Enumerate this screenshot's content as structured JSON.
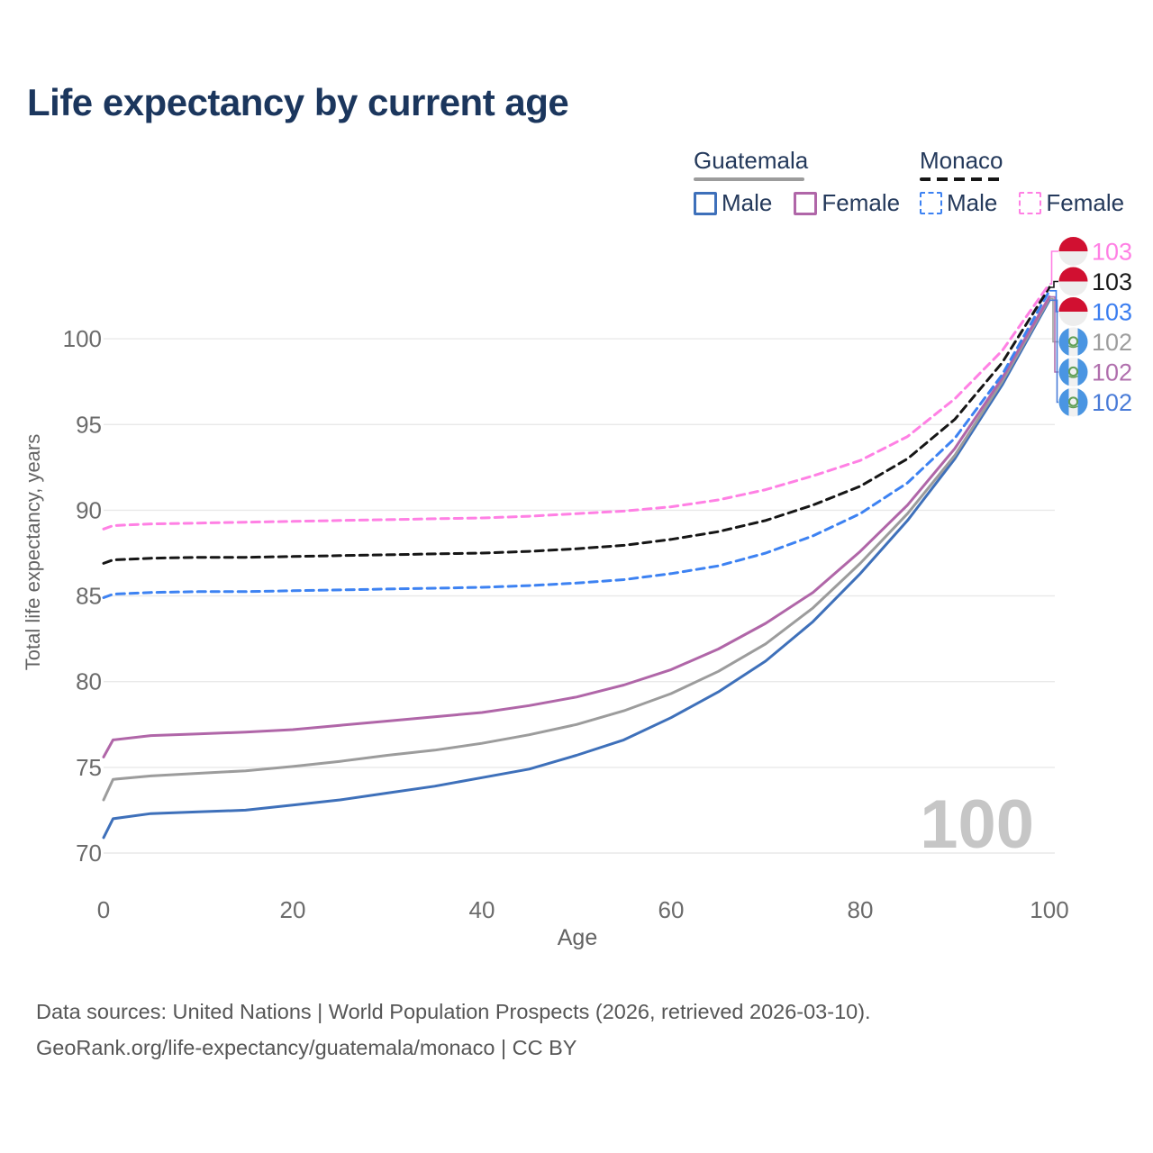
{
  "title": "Life expectancy by current age",
  "legend": {
    "guatemala": {
      "label": "Guatemala",
      "male": "Male",
      "female": "Female"
    },
    "monaco": {
      "label": "Monaco",
      "male": "Male",
      "female": "Female"
    }
  },
  "watermark": "100",
  "footer": {
    "line1": "Data sources: United Nations | World Population Prospects (2026, retrieved 2026-03-10).",
    "line2": "GeoRank.org/life-expectancy/guatemala/monaco | CC BY"
  },
  "colors": {
    "title_navy": "#1b365d",
    "guatemala_male": "#3e70ba",
    "guatemala_female": "#b066a8",
    "guatemala_all": "#9c9c9c",
    "monaco_male": "#3d82f2",
    "monaco_female": "#ff80e4",
    "monaco_all": "#161616",
    "grid": "#e9e9e9",
    "tick_gray": "#6b6b6b",
    "watermark_gray": "#c6c6c6",
    "monaco_flag_red": "#d11031",
    "guatemala_flag_blue": "#4a95e2",
    "guatemala_emblem_green": "#62a057"
  },
  "chart_data": {
    "type": "line",
    "title": "Life expectancy by current age",
    "xlabel": "Age",
    "ylabel": "Total life expectancy, years",
    "x_ticks": [
      0,
      20,
      40,
      60,
      80,
      100
    ],
    "y_ticks": [
      70,
      75,
      80,
      85,
      90,
      95,
      100
    ],
    "xlim": [
      0,
      100
    ],
    "ylim": [
      70,
      103.5
    ],
    "grid": "horizontal-only",
    "legend_position": "top-right",
    "ages": [
      0,
      1,
      5,
      10,
      15,
      20,
      25,
      30,
      35,
      40,
      45,
      50,
      55,
      60,
      65,
      70,
      75,
      80,
      85,
      90,
      95,
      100
    ],
    "series": [
      {
        "id": "guatemala_male",
        "name": "Guatemala Male",
        "country": "Guatemala",
        "sex": "Male",
        "color": "#3e70ba",
        "dashed": false,
        "values": [
          70.9,
          72.0,
          72.3,
          72.4,
          72.5,
          72.8,
          73.1,
          73.5,
          73.9,
          74.4,
          74.9,
          75.7,
          76.6,
          77.9,
          79.4,
          81.2,
          83.5,
          86.3,
          89.4,
          93.0,
          97.3,
          102.25
        ]
      },
      {
        "id": "guatemala_all",
        "name": "Guatemala (both sexes)",
        "country": "Guatemala",
        "sex": "All",
        "color": "#9c9c9c",
        "dashed": false,
        "values": [
          73.1,
          74.3,
          74.5,
          74.65,
          74.8,
          75.05,
          75.35,
          75.7,
          76.0,
          76.4,
          76.9,
          77.5,
          78.3,
          79.3,
          80.6,
          82.2,
          84.3,
          86.9,
          89.8,
          93.2,
          97.5,
          102.35
        ]
      },
      {
        "id": "guatemala_female",
        "name": "Guatemala Female",
        "country": "Guatemala",
        "sex": "Female",
        "color": "#b066a8",
        "dashed": false,
        "values": [
          75.6,
          76.6,
          76.85,
          76.95,
          77.05,
          77.2,
          77.45,
          77.7,
          77.95,
          78.2,
          78.6,
          79.1,
          79.8,
          80.7,
          81.9,
          83.4,
          85.2,
          87.6,
          90.3,
          93.6,
          97.7,
          102.45
        ]
      },
      {
        "id": "monaco_male",
        "name": "Monaco Male",
        "country": "Monaco",
        "sex": "Male",
        "color": "#3d82f2",
        "dashed": true,
        "values": [
          84.9,
          85.1,
          85.2,
          85.25,
          85.25,
          85.3,
          85.35,
          85.4,
          85.45,
          85.5,
          85.6,
          85.75,
          85.95,
          86.3,
          86.75,
          87.5,
          88.5,
          89.8,
          91.6,
          94.2,
          97.9,
          102.8
        ]
      },
      {
        "id": "monaco_all",
        "name": "Monaco (both sexes)",
        "country": "Monaco",
        "sex": "All",
        "color": "#161616",
        "dashed": true,
        "values": [
          86.9,
          87.1,
          87.2,
          87.25,
          87.25,
          87.3,
          87.35,
          87.4,
          87.45,
          87.5,
          87.6,
          87.75,
          87.95,
          88.3,
          88.75,
          89.4,
          90.3,
          91.4,
          93.0,
          95.3,
          98.6,
          103.0
        ]
      },
      {
        "id": "monaco_female",
        "name": "Monaco Female",
        "country": "Monaco",
        "sex": "Female",
        "color": "#ff80e4",
        "dashed": true,
        "values": [
          88.9,
          89.1,
          89.2,
          89.25,
          89.3,
          89.35,
          89.4,
          89.45,
          89.5,
          89.55,
          89.65,
          89.8,
          89.95,
          90.2,
          90.6,
          91.2,
          92.0,
          92.9,
          94.3,
          96.5,
          99.3,
          103.2
        ]
      }
    ],
    "end_labels": [
      {
        "series": "monaco_female",
        "value": "103",
        "color": "#ff80e4",
        "flag": "monaco"
      },
      {
        "series": "monaco_all",
        "value": "103",
        "color": "#1a1a1a",
        "flag": "monaco"
      },
      {
        "series": "monaco_male",
        "value": "103",
        "color": "#3b7ef0",
        "flag": "monaco"
      },
      {
        "series": "guatemala_all",
        "value": "102",
        "color": "#9e9e9e",
        "flag": "guatemala"
      },
      {
        "series": "guatemala_female",
        "value": "102",
        "color": "#b06fad",
        "flag": "guatemala"
      },
      {
        "series": "guatemala_male",
        "value": "102",
        "color": "#4a7cd8",
        "flag": "guatemala"
      }
    ]
  }
}
